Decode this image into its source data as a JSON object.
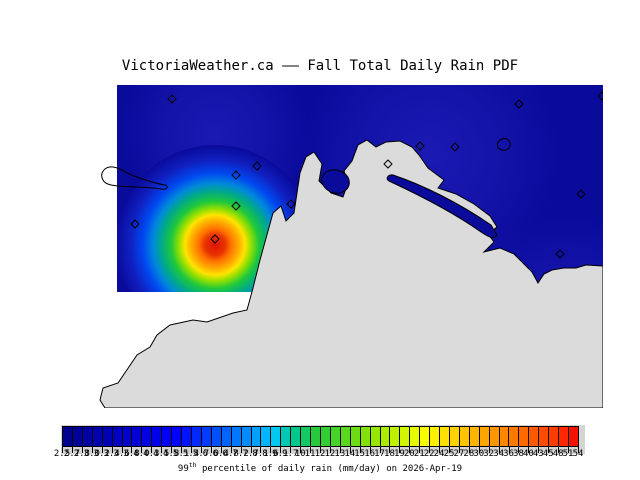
{
  "title": "VictoriaWeather.ca —— Fall Total Daily Rain PDF",
  "caption": {
    "prefix": "99",
    "sup": "th",
    "rest": " percentile of daily rain (mm/day) on 2026-Apr-19"
  },
  "colors": {
    "water": "#0A0A9B",
    "land": "#DBDBDB",
    "coastline": "#000000",
    "colorbar_panel": "#D4D4D4",
    "background": "#FFFFFF",
    "hotspot_peak": "#DD1400"
  },
  "chart_data": {
    "type": "heatmap",
    "title": "VictoriaWeather.ca —— Fall Total Daily Rain PDF",
    "caption": "99th percentile of daily rain (mm/day) on 2026-Apr-19",
    "units": "mm/day",
    "date": "2026-Apr-19",
    "field": {
      "description": "Interpolated 99th-percentile daily rain field over the Victoria BC region; deep-blue background (low values) over the water, single intense peak southwest of Victoria over Juan de Fuca Strait",
      "background_value": 2.5,
      "peak_value": 54,
      "peak_center_rel": [
        120,
        160
      ]
    },
    "stations": [
      [
        77,
        14
      ],
      [
        424,
        19
      ],
      [
        507,
        11
      ],
      [
        325,
        61
      ],
      [
        360,
        62
      ],
      [
        293,
        79
      ],
      [
        162,
        81
      ],
      [
        141,
        90
      ],
      [
        141,
        121
      ],
      [
        196,
        119
      ],
      [
        486,
        109
      ],
      [
        40,
        139
      ],
      [
        120,
        154
      ],
      [
        465,
        169
      ]
    ],
    "hotspot_stops": [
      [
        "0%",
        "#DD1400"
      ],
      [
        "10%",
        "#E83200"
      ],
      [
        "16%",
        "#FF7000"
      ],
      [
        "24%",
        "#FFAE00"
      ],
      [
        "30%",
        "#FFE400"
      ],
      [
        "36%",
        "#96E000"
      ],
      [
        "44%",
        "#1EC83C"
      ],
      [
        "54%",
        "#00A88C"
      ],
      [
        "62%",
        "#0088DC"
      ],
      [
        "72%",
        "#0048F0"
      ],
      [
        "85%",
        "#1020C0"
      ],
      [
        "100%",
        "#0A0A9B"
      ]
    ],
    "colorbar": {
      "orientation": "horizontal",
      "min_label": "2.5",
      "max_label": "54",
      "cell_colors": [
        "#00008F",
        "#000099",
        "#0000A3",
        "#0000AD",
        "#0000B7",
        "#0000C1",
        "#0000CC",
        "#0000D6",
        "#0000E0",
        "#0000EA",
        "#0000F5",
        "#0000FF",
        "#0014FF",
        "#0028FF",
        "#003CFF",
        "#0050FF",
        "#0064FF",
        "#0078FF",
        "#008CFF",
        "#00A0FF",
        "#00B4FF",
        "#00C8F0",
        "#00C8B4",
        "#00C88C",
        "#14C864",
        "#28C83C",
        "#32CD32",
        "#46D228",
        "#5AD71E",
        "#6EDC14",
        "#82E10A",
        "#96E600",
        "#AAEB00",
        "#BEF000",
        "#D2F500",
        "#E6FA00",
        "#FAFF00",
        "#FFF000",
        "#FFE100",
        "#FFD200",
        "#FFC300",
        "#FFB400",
        "#FFA500",
        "#FF9600",
        "#FF8700",
        "#FF7800",
        "#FF6900",
        "#FF5A00",
        "#FF4B00",
        "#FF3C00",
        "#FF2800",
        "#F01400"
      ],
      "tick_labels": [
        "2.5",
        "2.7",
        "2.8",
        "3.0",
        "3.2",
        "3.4",
        "3.6",
        "3.8",
        "4.0",
        "4.3",
        "4.5",
        "4.8",
        "5.1",
        "5.4",
        "5.7",
        "6.0",
        "6.4",
        "6.8",
        "7.2",
        "7.7",
        "8.1",
        "8.6",
        "9.1",
        "9.7",
        "10",
        "11",
        "12",
        "12",
        "13",
        "14",
        "15",
        "16",
        "17",
        "18",
        "19",
        "20",
        "21",
        "22",
        "24",
        "25",
        "27",
        "28",
        "30",
        "32",
        "34",
        "36",
        "38",
        "40",
        "43",
        "45",
        "48",
        "51",
        "54"
      ]
    }
  }
}
